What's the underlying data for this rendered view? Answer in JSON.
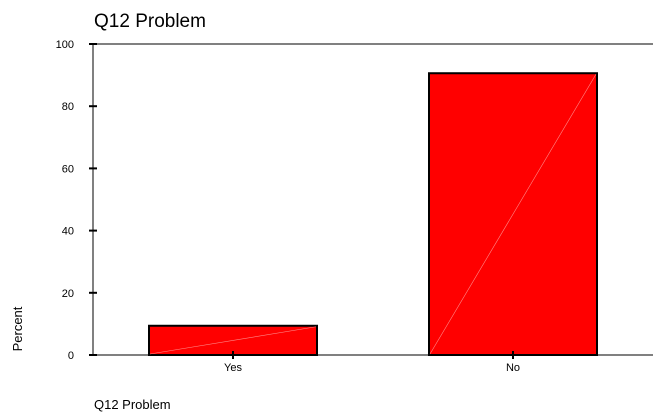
{
  "chart_data": {
    "type": "bar",
    "title": "Q12 Problem",
    "xlabel": "Q12 Problem",
    "ylabel": "Percent",
    "categories": [
      "Yes",
      "No"
    ],
    "values": [
      9.4,
      90.6
    ],
    "ylim": [
      0,
      100
    ],
    "yticks": [
      0,
      20,
      40,
      60,
      80,
      100
    ],
    "grid": false,
    "legend": "none",
    "bar_color": "#ff0000",
    "bar_edge_color": "#000000",
    "axis_color": "#000000"
  }
}
